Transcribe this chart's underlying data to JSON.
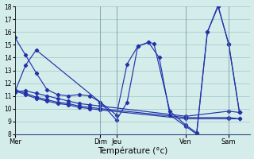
{
  "title": "Température (°c)",
  "background_color": "#d4ecea",
  "grid_color": "#a0c8c8",
  "line_color": "#2233aa",
  "ylim": [
    8,
    18
  ],
  "yticks": [
    8,
    9,
    10,
    11,
    12,
    13,
    14,
    15,
    16,
    17,
    18
  ],
  "xlim": [
    0,
    22
  ],
  "day_labels": [
    "Mer",
    "Dim",
    "Jeu",
    "Ven",
    "Sam"
  ],
  "day_x": [
    0,
    8.0,
    9.5,
    16.0,
    20.0
  ],
  "vert_lines": [
    0,
    8.0,
    9.5,
    16.0,
    20.0
  ],
  "series": [
    {
      "x": [
        0,
        1,
        2,
        3,
        4,
        5,
        6,
        7,
        8,
        9.5,
        10.5,
        11.5,
        12.5,
        13.5,
        14.5,
        16,
        17,
        18,
        19,
        20,
        21
      ],
      "y": [
        15.6,
        14.2,
        12.8,
        11.5,
        11.1,
        11.0,
        11.1,
        11.0,
        10.5,
        9.5,
        13.5,
        14.9,
        15.2,
        14.0,
        9.5,
        8.6,
        8.0,
        16.0,
        18.1,
        15.0,
        9.7
      ]
    },
    {
      "x": [
        0,
        1,
        2,
        3,
        4,
        5,
        6,
        7,
        8,
        16,
        20,
        21
      ],
      "y": [
        11.3,
        11.4,
        11.2,
        11.0,
        10.8,
        10.6,
        10.4,
        10.3,
        10.2,
        9.4,
        9.8,
        9.7
      ]
    },
    {
      "x": [
        0,
        1,
        2,
        3,
        4,
        5,
        6,
        7,
        8,
        16,
        20,
        21
      ],
      "y": [
        11.4,
        11.1,
        10.8,
        10.6,
        10.4,
        10.3,
        10.1,
        10.0,
        9.9,
        9.2,
        9.2,
        9.2
      ]
    },
    {
      "x": [
        0,
        1,
        2,
        3,
        4,
        5,
        6,
        7,
        8,
        16,
        20,
        21
      ],
      "y": [
        11.5,
        11.2,
        10.9,
        10.7,
        10.5,
        10.4,
        10.2,
        10.1,
        10.0,
        9.3,
        9.3,
        9.2
      ]
    },
    {
      "x": [
        0,
        1,
        2,
        8,
        9.5,
        10.5,
        11.5,
        12.5,
        13.0,
        14.5,
        16,
        17,
        18,
        19,
        20,
        21
      ],
      "y": [
        11.3,
        13.4,
        14.6,
        10.5,
        9.1,
        10.5,
        14.9,
        15.2,
        15.1,
        9.8,
        8.7,
        8.1,
        16.0,
        18.0,
        15.1,
        9.7
      ]
    }
  ]
}
